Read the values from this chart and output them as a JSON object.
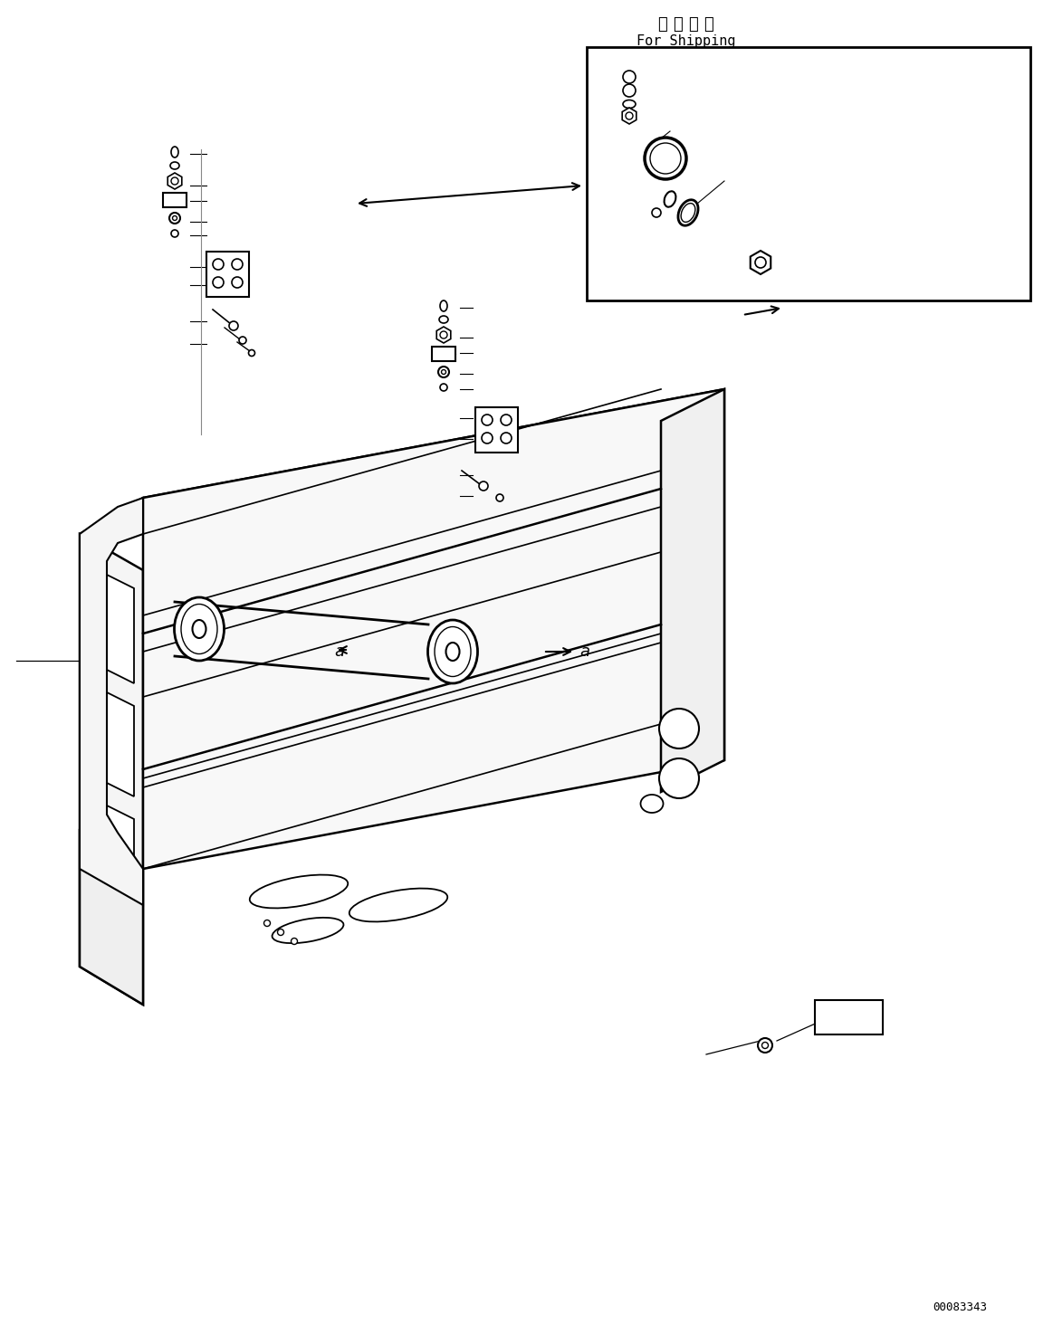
{
  "title_japanese": "運 携 部 品",
  "title_english": "For Shipping",
  "part_number": "00083343",
  "background_color": "#ffffff",
  "line_color": "#000000",
  "fig_width": 11.63,
  "fig_height": 14.64,
  "dpi": 100
}
